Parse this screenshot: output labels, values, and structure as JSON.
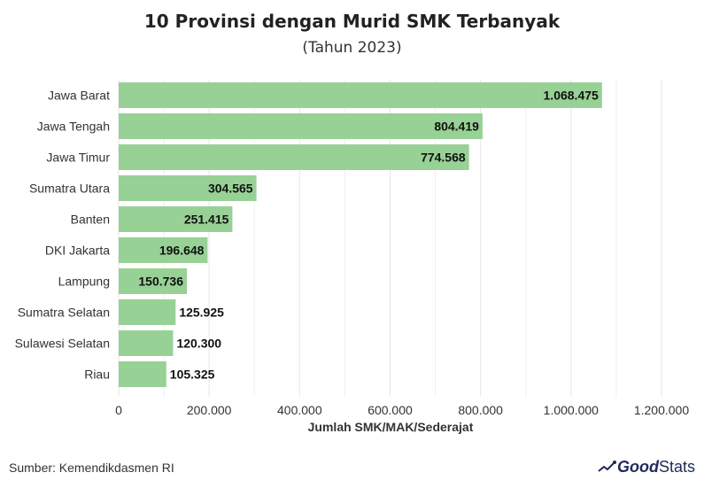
{
  "title": "10 Provinsi dengan Murid SMK Terbanyak",
  "subtitle": "(Tahun 2023)",
  "source": "Sumber: Kemendikdasmen RI",
  "brand": {
    "part1": "Good",
    "part2": "Stats"
  },
  "colors": {
    "bar": "#97d195",
    "grid": "#e6e6e6",
    "text": "#333333",
    "brand": "#1f2a5a"
  },
  "chart_data": {
    "type": "bar",
    "orientation": "horizontal",
    "categories": [
      "Jawa Barat",
      "Jawa Tengah",
      "Jawa Timur",
      "Sumatra Utara",
      "Banten",
      "DKI Jakarta",
      "Lampung",
      "Sumatra Selatan",
      "Sulawesi Selatan",
      "Riau"
    ],
    "values": [
      1068475,
      804419,
      774568,
      304565,
      251415,
      196648,
      150736,
      125925,
      120300,
      105325
    ],
    "value_labels": [
      "1.068.475",
      "804.419",
      "774.568",
      "304.565",
      "251.415",
      "196.648",
      "150.736",
      "125.925",
      "120.300",
      "105.325"
    ],
    "xlabel": "Jumlah SMK/MAK/Sederajat",
    "ylabel": "",
    "xlim": [
      0,
      1200000
    ],
    "x_ticks": [
      0,
      200000,
      400000,
      600000,
      800000,
      1000000,
      1200000
    ],
    "x_tick_labels": [
      "0",
      "200.000",
      "400.000",
      "600.000",
      "800.000",
      "1.000.000",
      "1.200.000"
    ],
    "grid": true,
    "legend": "none"
  }
}
